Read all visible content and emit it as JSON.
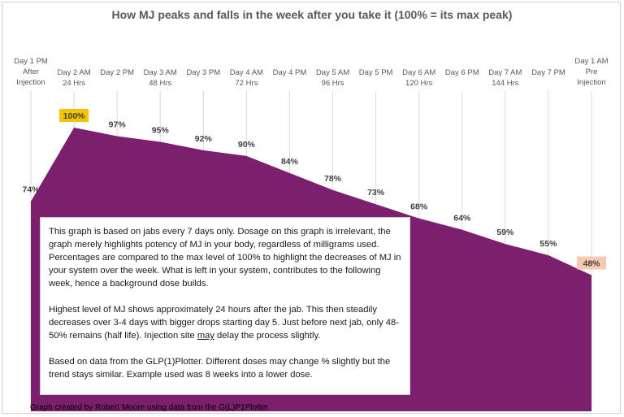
{
  "chart_data": {
    "type": "area",
    "title": "How MJ peaks and falls in the week after you take it (100% = its max peak)",
    "categories": [
      "Day 1 PM\nAfter\nInjection",
      "Day 2 AM\n24 Hrs",
      "Day 2 PM",
      "Day 3 AM\n48 Hrs",
      "Day 3 PM",
      "Day 4 AM\n72 Hrs",
      "Day 4 PM",
      "Day 5 AM\n96 Hrs",
      "Day 5 PM",
      "Day 6 AM\n120 Hrs",
      "Day 6 PM",
      "Day 7 AM\n144 Hrs",
      "Day 7 PM",
      "Day 1 AM\nPre\nInjection"
    ],
    "values": [
      74,
      100,
      97,
      95,
      92,
      90,
      84,
      78,
      73,
      68,
      64,
      59,
      55,
      48
    ],
    "value_suffix": "%",
    "ylim": [
      0,
      100
    ],
    "xlabel": "",
    "ylabel": "",
    "grid": "vertical",
    "legend": "none",
    "colors": {
      "area": "#7b1f6e",
      "gridline": "#d9d9d9",
      "label": "#595959",
      "peak_highlight": "#f5c400",
      "last_highlight": "#f8c8b0"
    }
  },
  "note": {
    "paragraphs": [
      "This graph is based on jabs every 7 days only. Dosage on this graph is irrelevant, the graph merely highlights potency of MJ in your body, regardless of milligrams used. Percentages are compared to the max level of 100% to highlight the decreases of MJ in your system over the week. What is left in your system, contributes to the following week, hence a background dose builds.",
      "Highest level of MJ shows approximately 24 hours after the jab. This then steadily decreases over 3-4 days with bigger drops starting day 5. Just before next jab, only 48-50% remains (half life). Injection site may delay the process slightly.",
      "Based on data from the GLP(1)Plotter. Different doses may change % slightly but the trend stays similar. Example used was 8 weeks into a lower dose."
    ],
    "underlined_word": "may"
  },
  "credit": "Graph created by Robert Moore using data from the G(L)P1Plotter"
}
